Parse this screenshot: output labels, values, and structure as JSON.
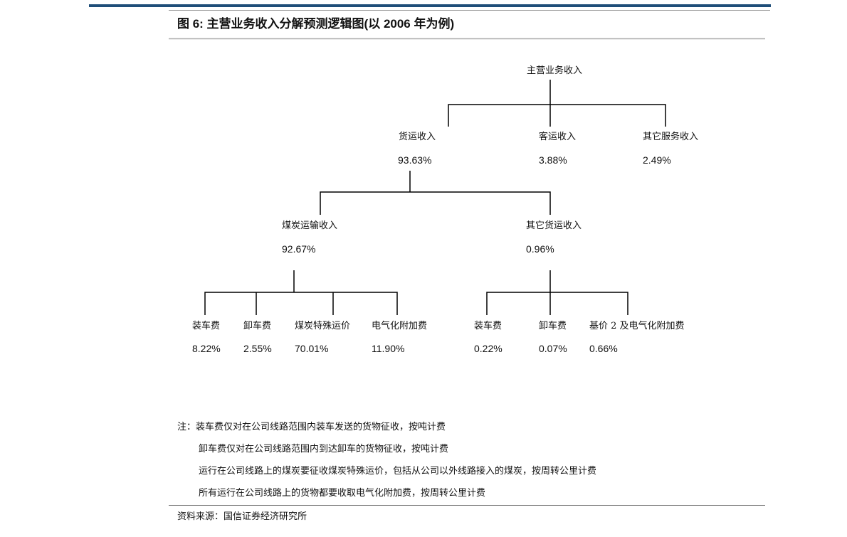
{
  "header": {
    "title": "图 6:  主营业务收入分解预测逻辑图(以 2006 年为例)"
  },
  "colors": {
    "top_rule": "#1f4e79",
    "divider": "#999999",
    "tree_line": "#000000"
  },
  "tree": {
    "root": {
      "label": "主营业务收入"
    },
    "level1": [
      {
        "label": "货运收入",
        "value": "93.63%"
      },
      {
        "label": "客运收入",
        "value": "3.88%"
      },
      {
        "label": "其它服务收入",
        "value": "2.49%"
      }
    ],
    "level2": [
      {
        "label": "煤炭运输收入",
        "value": "92.67%"
      },
      {
        "label": "其它货运收入",
        "value": "0.96%"
      }
    ],
    "level3": [
      {
        "label": "装车费",
        "value": "8.22%"
      },
      {
        "label": "卸车费",
        "value": "2.55%"
      },
      {
        "label": "煤炭特殊运价",
        "value": "70.01%"
      },
      {
        "label": "电气化附加费",
        "value": "11.90%"
      },
      {
        "label": "装车费",
        "value": "0.22%"
      },
      {
        "label": "卸车费",
        "value": "0.07%"
      },
      {
        "label": "基价 2 及电气化附加费",
        "value": "0.66%"
      }
    ]
  },
  "notes": [
    "注：装车费仅对在公司线路范围内装车发送的货物征收，按吨计费",
    "卸车费仅对在公司线路范围内到达卸车的货物征收，按吨计费",
    "运行在公司线路上的煤炭要征收煤炭特殊运价，包括从公司以外线路接入的煤炭，按周转公里计费",
    "所有运行在公司线路上的货物都要收取电气化附加费，按周转公里计费"
  ],
  "source": "资料来源：国信证券经济研究所"
}
